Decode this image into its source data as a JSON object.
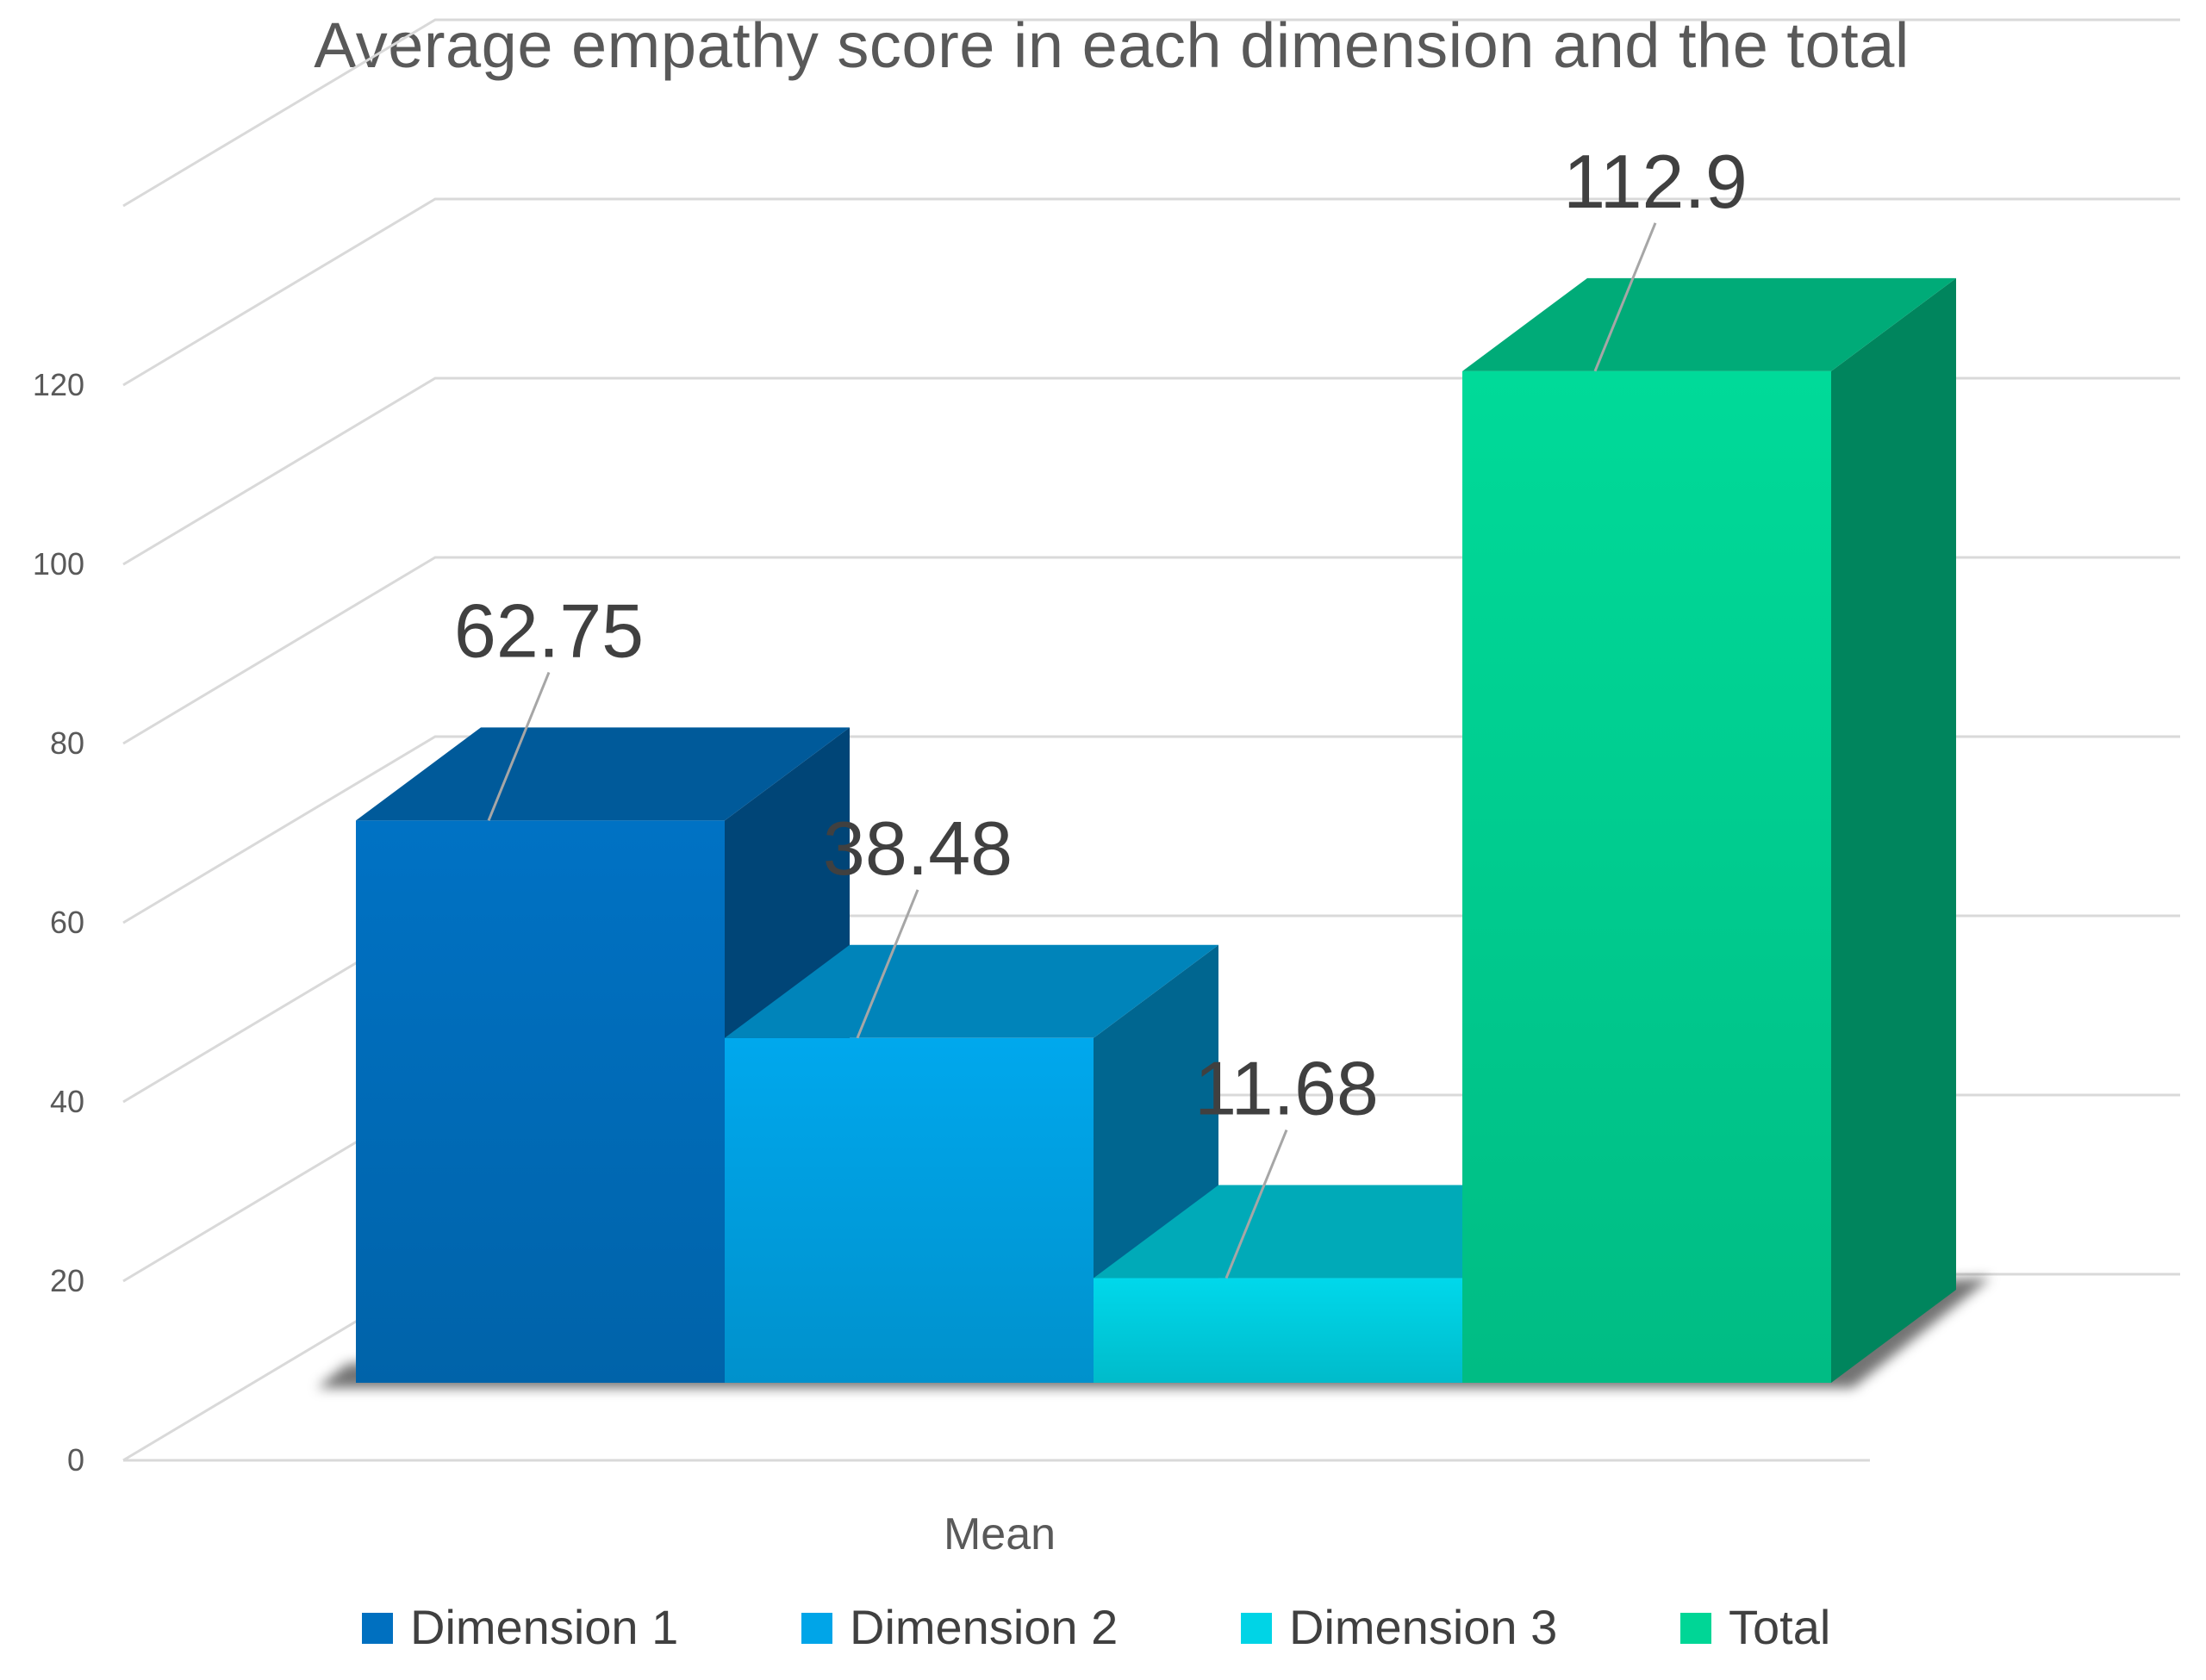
{
  "chart_data": {
    "type": "bar",
    "style": "3d-clustered-column",
    "title": "Average empathy score in each dimension and the total",
    "categories": [
      "Mean"
    ],
    "series": [
      {
        "name": "Dimension 1",
        "values": [
          62.75
        ],
        "color": "#0070C0"
      },
      {
        "name": "Dimension 2",
        "values": [
          38.48
        ],
        "color": "#00A5E8"
      },
      {
        "name": "Dimension 3",
        "values": [
          11.68
        ],
        "color": "#00D4E6"
      },
      {
        "name": "Total",
        "values": [
          112.9
        ],
        "color": "#00D696"
      }
    ],
    "data_labels": [
      "62.75",
      "38.48",
      "11.68",
      "112.9"
    ],
    "xlabel": "",
    "ylabel": "",
    "ylim": [
      0,
      140
    ],
    "yticks": [
      0,
      20,
      40,
      60,
      80,
      100,
      120
    ],
    "grid": true,
    "legend_position": "bottom"
  }
}
